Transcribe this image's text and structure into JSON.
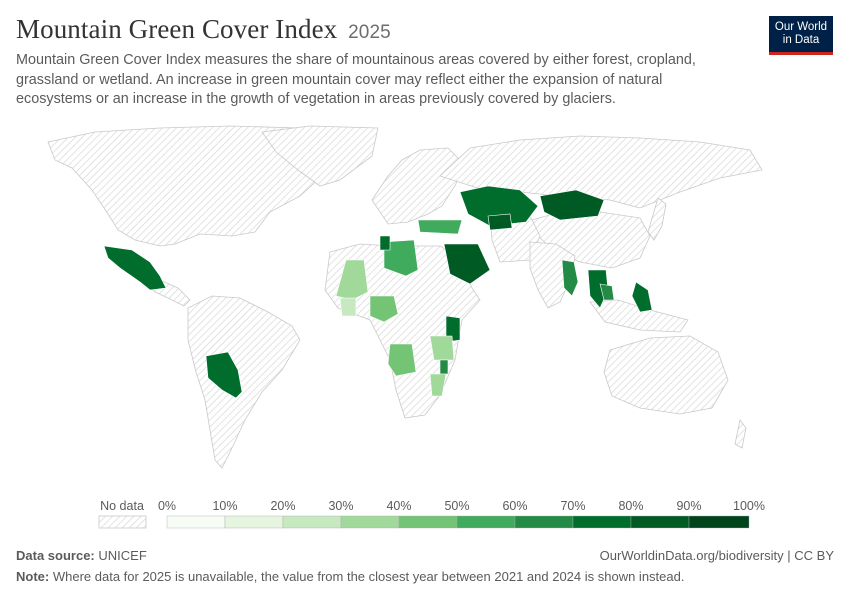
{
  "header": {
    "title": "Mountain Green Cover Index",
    "year": "2025",
    "subtitle": "Mountain Green Cover Index measures the share of mountainous areas covered by either forest, cropland, grassland or wetland. An increase in green mountain cover may reflect either the expansion of natural ecosystems or an increase in the growth of vegetation in areas previously covered by glaciers."
  },
  "logo": {
    "line1": "Our World",
    "line2": "in Data"
  },
  "legend": {
    "no_data_label": "No data",
    "ticks": [
      "0%",
      "10%",
      "20%",
      "30%",
      "40%",
      "50%",
      "60%",
      "70%",
      "80%",
      "90%",
      "100%"
    ],
    "colors": [
      "#f7fcf5",
      "#e5f5e0",
      "#c7e9c0",
      "#a1d99b",
      "#74c476",
      "#41ab5d",
      "#238b45",
      "#006d2c",
      "#005a24",
      "#00441b"
    ]
  },
  "map_data": {
    "regions": [
      {
        "name": "Mexico",
        "value_pct": 78
      },
      {
        "name": "Bolivia",
        "value_pct": 72
      },
      {
        "name": "Libya",
        "value_pct": 55
      },
      {
        "name": "Mali",
        "value_pct": 32
      },
      {
        "name": "Burkina Faso",
        "value_pct": 28
      },
      {
        "name": "Nigeria",
        "value_pct": 42
      },
      {
        "name": "Angola",
        "value_pct": 45
      },
      {
        "name": "Kenya",
        "value_pct": 72
      },
      {
        "name": "Tanzania",
        "value_pct": 35
      },
      {
        "name": "Malawi",
        "value_pct": 60
      },
      {
        "name": "Mozambique",
        "value_pct": 38
      },
      {
        "name": "Turkey",
        "value_pct": 55
      },
      {
        "name": "Saudi Arabia",
        "value_pct": 82
      },
      {
        "name": "Kazakhstan",
        "value_pct": 72
      },
      {
        "name": "Kyrgyzstan",
        "value_pct": 85
      },
      {
        "name": "Mongolia",
        "value_pct": 82
      },
      {
        "name": "Thailand",
        "value_pct": 68
      },
      {
        "name": "Cambodia",
        "value_pct": 75
      },
      {
        "name": "Myanmar",
        "value_pct": 68
      },
      {
        "name": "Philippines",
        "value_pct": 72
      },
      {
        "name": "Algeria",
        "value_pct": 72
      }
    ]
  },
  "footer": {
    "source_label": "Data source:",
    "source_value": "UNICEF",
    "link": "OurWorldinData.org/biodiversity | CC BY",
    "note_label": "Note:",
    "note_text": "Where data for 2025 is unavailable, the value from the closest year between 2021 and 2024 is shown instead."
  }
}
